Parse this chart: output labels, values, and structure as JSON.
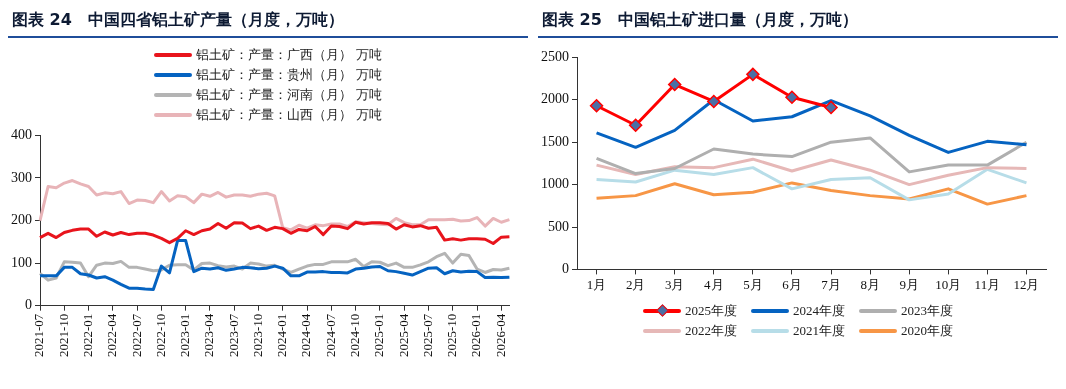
{
  "chart_data": [
    {
      "type": "line",
      "title": "图表 24　中国四省铝土矿产量（月度，万吨）",
      "categories": [
        "2021-07",
        null,
        null,
        "2021-10",
        null,
        null,
        "2022-01",
        null,
        null,
        "2022-04",
        null,
        null,
        "2022-07",
        null,
        null,
        "2022-10",
        null,
        null,
        "2023-01",
        null,
        null,
        "2023-04",
        null,
        null,
        "2023-07",
        null,
        null,
        "2023-10",
        null,
        null,
        "2024-01",
        null,
        null,
        "2024-04",
        null,
        null,
        "2024-07",
        null,
        null,
        "2024-10",
        null,
        null,
        "2025-01",
        null,
        null,
        "2025-04",
        null,
        null,
        "2025-07",
        null,
        null,
        "2025-10",
        null,
        null,
        "2026-01",
        null,
        null,
        "2026-04",
        null
      ],
      "series": [
        {
          "name": "铝土矿：产量：广西（月） 万吨",
          "color": "#e8141c",
          "values": [
            160,
            170,
            160,
            172,
            177,
            180,
            180,
            163,
            173,
            166,
            172,
            167,
            170,
            170,
            166,
            158,
            148,
            158,
            176,
            167,
            176,
            180,
            193,
            182,
            195,
            194,
            181,
            187,
            177,
            184,
            181,
            170,
            179,
            176,
            186,
            167,
            187,
            186,
            181,
            196,
            192,
            195,
            195,
            193,
            180,
            190,
            185,
            188,
            182,
            184,
            154,
            157,
            154,
            157,
            157,
            156,
            146,
            161,
            162
          ]
        },
        {
          "name": "铝土矿：产量：贵州（月） 万吨",
          "color": "#0563c1",
          "values": [
            70,
            70,
            70,
            90,
            90,
            75,
            72,
            65,
            68,
            60,
            50,
            41,
            41,
            39,
            38,
            93,
            77,
            153,
            153,
            80,
            88,
            86,
            89,
            83,
            86,
            90,
            89,
            87,
            88,
            93,
            88,
            70,
            70,
            79,
            79,
            80,
            78,
            78,
            77,
            86,
            88,
            91,
            92,
            82,
            80,
            76,
            72,
            80,
            88,
            89,
            75,
            82,
            79,
            81,
            80,
            66,
            67,
            66,
            67
          ]
        },
        {
          "name": "铝土矿：产量：河南（月） 万吨",
          "color": "#b4b4b4",
          "values": [
            76,
            60,
            65,
            103,
            102,
            100,
            68,
            95,
            100,
            99,
            104,
            90,
            90,
            86,
            82,
            84,
            95,
            96,
            96,
            84,
            99,
            100,
            94,
            91,
            93,
            86,
            100,
            98,
            93,
            95,
            86,
            78,
            86,
            93,
            97,
            97,
            103,
            103,
            103,
            109,
            92,
            103,
            102,
            94,
            100,
            90,
            90,
            96,
            103,
            115,
            123,
            100,
            121,
            118,
            86,
            78,
            85,
            84,
            88
          ]
        },
        {
          "name": "铝土矿：产量：山西（月） 万吨",
          "color": "#e8b4b8",
          "values": [
            200,
            280,
            277,
            288,
            294,
            286,
            280,
            260,
            265,
            263,
            268,
            240,
            248,
            247,
            242,
            268,
            246,
            258,
            256,
            242,
            262,
            257,
            266,
            255,
            260,
            260,
            257,
            262,
            264,
            258,
            183,
            178,
            189,
            182,
            190,
            188,
            192,
            192,
            186,
            197,
            195,
            193,
            191,
            190,
            205,
            195,
            190,
            190,
            202,
            202,
            202,
            203,
            199,
            200,
            207,
            187,
            205,
            196,
            202
          ]
        }
      ],
      "ylim": [
        0,
        400
      ],
      "yticks": [
        0,
        100,
        200,
        300,
        400
      ],
      "grid": false,
      "legend": "top",
      "marker": "none",
      "line_style": "solid"
    },
    {
      "type": "line",
      "title": "图表 25　中国铝土矿进口量（月度，万吨）",
      "categories": [
        "1月",
        "2月",
        "3月",
        "4月",
        "5月",
        "6月",
        "7月",
        "8月",
        "9月",
        "10月",
        "11月",
        "12月"
      ],
      "series": [
        {
          "name": "2025年度",
          "color": "#ff0000",
          "marker": "diamond",
          "values": [
            1930,
            1700,
            2180,
            1980,
            2300,
            2030,
            1910,
            null,
            null,
            null,
            null,
            null
          ]
        },
        {
          "name": "2024年度",
          "color": "#0563c1",
          "values": [
            1610,
            1440,
            1640,
            2000,
            1750,
            1800,
            1990,
            1810,
            1580,
            1380,
            1510,
            1470
          ]
        },
        {
          "name": "2023年度",
          "color": "#afafaf",
          "values": [
            1310,
            1130,
            1190,
            1420,
            1360,
            1330,
            1500,
            1550,
            1150,
            1230,
            1230,
            1500
          ]
        },
        {
          "name": "2022年度",
          "color": "#e6b8b7",
          "values": [
            1230,
            1120,
            1210,
            1200,
            1300,
            1160,
            1290,
            1170,
            1000,
            1110,
            1200,
            1190
          ]
        },
        {
          "name": "2021年度",
          "color": "#b7dde8",
          "values": [
            1060,
            1030,
            1170,
            1120,
            1200,
            950,
            1060,
            1080,
            820,
            890,
            1180,
            1020
          ]
        },
        {
          "name": "2020年度",
          "color": "#f79646",
          "values": [
            840,
            870,
            1010,
            880,
            910,
            1020,
            930,
            870,
            830,
            950,
            770,
            870
          ]
        }
      ],
      "ylim": [
        0,
        2500
      ],
      "yticks": [
        0,
        500,
        1000,
        1500,
        2000,
        2500
      ],
      "grid": false,
      "legend": "bottom",
      "marker": "none",
      "line_style": "solid"
    }
  ]
}
